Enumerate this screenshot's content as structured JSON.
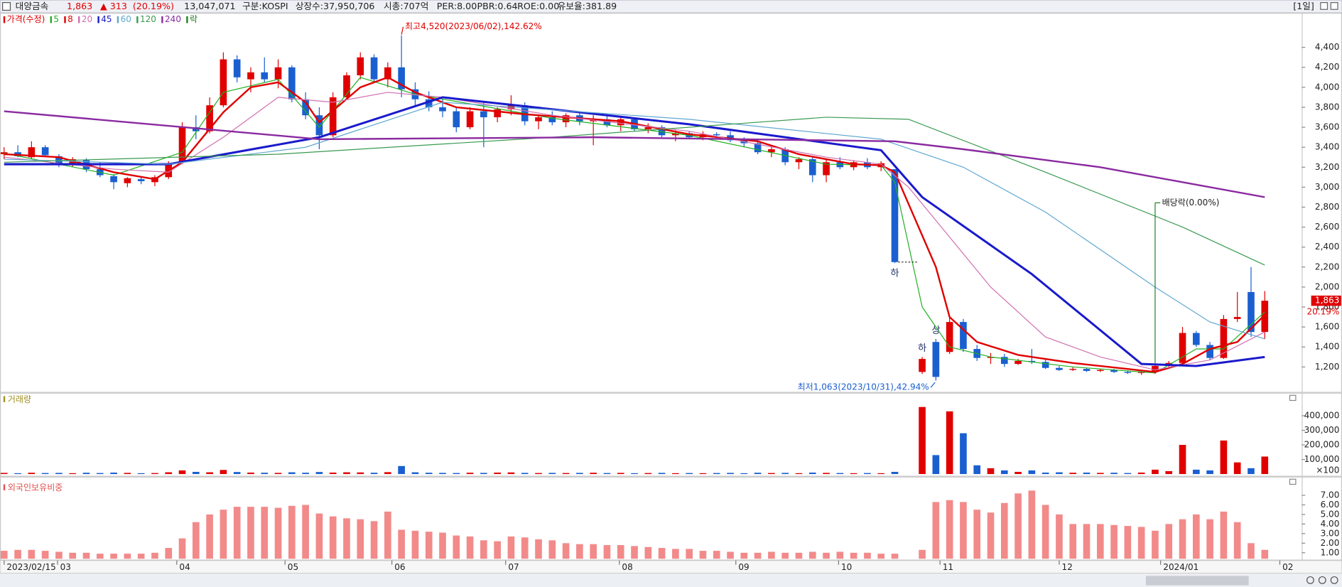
{
  "header": {
    "name": "대양금속",
    "price": "1,863",
    "change": "▲ 313",
    "change_pct": "(20.19%)",
    "volume": "13,047,071",
    "market": "구분:KOSPI",
    "shares": "상장수:37,950,706",
    "cap": "시총:707억",
    "per": "PER:8.00",
    "pbr": "PBR:0.64",
    "roe": "ROE:0.00",
    "reserve": "유보율:381.89",
    "period": "[1일]"
  },
  "chart_data": [
    {
      "type": "candlestick",
      "legend_title": "가격(수정)",
      "up_color": "#e00000",
      "down_color": "#1a5fd0",
      "open": [
        3330,
        3350,
        3300,
        3400,
        3310,
        3230,
        3270,
        3180,
        3110,
        3040,
        3080,
        3050,
        3100,
        3250,
        3600,
        3560,
        3820,
        4280,
        4080,
        4150,
        4080,
        4200,
        3880,
        3720,
        3520,
        3900,
        4120,
        4300,
        4080,
        4200,
        3980,
        3880,
        3800,
        3760,
        3600,
        3760,
        3700,
        3780,
        3820,
        3660,
        3700,
        3650,
        3720,
        3660,
        3680,
        3620,
        3680,
        3580,
        3600,
        3520,
        3540,
        3500,
        3530,
        3520,
        3470,
        3440,
        3350,
        3380,
        3250,
        3280,
        3120,
        3250,
        3200,
        3250,
        3200,
        3180,
        null,
        1150,
        1450,
        1350,
        1650,
        1380,
        1290,
        1300,
        1230,
        1260,
        1250,
        1190,
        1170,
        1180,
        1160,
        1170,
        1150,
        1140,
        1150,
        1210,
        1240,
        1540,
        1420,
        1290,
        1680,
        1950,
        1550
      ],
      "high": [
        3400,
        3420,
        3460,
        3420,
        3330,
        3300,
        3290,
        3250,
        3130,
        3100,
        3110,
        3120,
        3260,
        3650,
        3720,
        3900,
        4350,
        4320,
        4200,
        4300,
        4280,
        4220,
        3950,
        3800,
        3950,
        4150,
        4350,
        4330,
        4250,
        4520,
        4050,
        3960,
        3880,
        3800,
        3800,
        3850,
        3800,
        3920,
        3850,
        3720,
        3760,
        3740,
        3740,
        3720,
        3720,
        3700,
        3700,
        3640,
        3620,
        3570,
        3560,
        3560,
        3550,
        3560,
        3500,
        3470,
        3420,
        3400,
        3300,
        3300,
        3280,
        3300,
        3270,
        3290,
        3260,
        3180,
        null,
        1300,
        1480,
        1700,
        1680,
        1420,
        1340,
        1330,
        1280,
        1380,
        1270,
        1210,
        1200,
        1190,
        1180,
        1180,
        1160,
        1160,
        1220,
        1260,
        1600,
        1560,
        1450,
        1720,
        1950,
        2200,
        1960
      ],
      "low": [
        3280,
        3300,
        3280,
        3300,
        3200,
        3200,
        3150,
        3100,
        2980,
        3000,
        3030,
        3010,
        3080,
        3230,
        3480,
        3540,
        3800,
        4050,
        3950,
        4050,
        3990,
        3850,
        3680,
        3380,
        3500,
        3880,
        4080,
        4050,
        4000,
        3900,
        3820,
        3760,
        3700,
        3550,
        3580,
        3400,
        3650,
        3720,
        3620,
        3580,
        3620,
        3600,
        3620,
        3420,
        3600,
        3560,
        3560,
        3540,
        3500,
        3460,
        3480,
        3470,
        3480,
        3450,
        3400,
        3330,
        3300,
        3220,
        3180,
        3050,
        3050,
        3180,
        3170,
        3180,
        3160,
        2240,
        null,
        1130,
        1063,
        1330,
        1350,
        1260,
        1230,
        1200,
        1220,
        1230,
        1180,
        1160,
        1160,
        1150,
        1150,
        1140,
        1130,
        1120,
        1130,
        1190,
        1220,
        1400,
        1270,
        1280,
        1650,
        1500,
        1480
      ],
      "close": [
        3350,
        3310,
        3400,
        3320,
        3230,
        3280,
        3180,
        3120,
        3050,
        3090,
        3060,
        3100,
        3240,
        3600,
        3560,
        3820,
        4280,
        4100,
        4150,
        4080,
        4200,
        3880,
        3720,
        3520,
        3900,
        4120,
        4300,
        4080,
        4200,
        3980,
        3880,
        3800,
        3760,
        3600,
        3760,
        3700,
        3780,
        3820,
        3660,
        3700,
        3650,
        3720,
        3660,
        3680,
        3620,
        3680,
        3580,
        3600,
        3520,
        3540,
        3500,
        3530,
        3520,
        3470,
        3440,
        3350,
        3380,
        3250,
        3280,
        3120,
        3250,
        3200,
        3250,
        3200,
        3240,
        2250,
        null,
        1280,
        1100,
        1650,
        1380,
        1290,
        1300,
        1230,
        1260,
        1250,
        1190,
        1170,
        1180,
        1160,
        1170,
        1150,
        1140,
        1150,
        1210,
        1240,
        1540,
        1420,
        1290,
        1680,
        1700,
        1550,
        1863
      ],
      "series": [
        {
          "name": "5",
          "color": "#22b022",
          "width": 1,
          "x": [
            0,
            8,
            13,
            16,
            20,
            23,
            26,
            30,
            40,
            50,
            60,
            64,
            65,
            67,
            69,
            72,
            78,
            84,
            87,
            89,
            92
          ],
          "values": [
            3340,
            3120,
            3350,
            3950,
            4080,
            3600,
            4100,
            3930,
            3690,
            3520,
            3230,
            3220,
            3050,
            1800,
            1400,
            1300,
            1200,
            1140,
            1380,
            1380,
            1750
          ]
        },
        {
          "name": "8",
          "color": "#e00000",
          "width": 2,
          "x": [
            0,
            4,
            8,
            11,
            13,
            16,
            18,
            20,
            22,
            23,
            26,
            28,
            30,
            33,
            38,
            45,
            50,
            55,
            58,
            62,
            64,
            65,
            68,
            69,
            71,
            74,
            78,
            82,
            84,
            86,
            88,
            90,
            92
          ],
          "values": [
            3330,
            3300,
            3150,
            3080,
            3250,
            3750,
            4000,
            4050,
            3850,
            3650,
            4000,
            4100,
            3950,
            3800,
            3730,
            3660,
            3530,
            3460,
            3330,
            3230,
            3220,
            3150,
            2200,
            1700,
            1450,
            1320,
            1240,
            1180,
            1150,
            1230,
            1380,
            1450,
            1720
          ]
        },
        {
          "name": "20",
          "color": "#d070b0",
          "width": 1,
          "x": [
            0,
            8,
            12,
            16,
            20,
            24,
            28,
            32,
            40,
            50,
            60,
            64,
            66,
            69,
            72,
            76,
            80,
            84,
            88,
            92
          ],
          "values": [
            3300,
            3180,
            3150,
            3500,
            3900,
            3850,
            3950,
            3900,
            3720,
            3560,
            3300,
            3230,
            3000,
            2500,
            2000,
            1500,
            1300,
            1170,
            1270,
            1550
          ]
        },
        {
          "name": "45",
          "color": "#1a1acc",
          "width": 2.5,
          "x": [
            0,
            12,
            23,
            32,
            50,
            64,
            67,
            75,
            83,
            87,
            92
          ],
          "values": [
            3230,
            3230,
            3500,
            3900,
            3630,
            3370,
            2900,
            2130,
            1230,
            1210,
            1300
          ]
        },
        {
          "name": "60",
          "color": "#60a8d0",
          "width": 1,
          "x": [
            0,
            12,
            22,
            32,
            50,
            64,
            70,
            76,
            84,
            88,
            92
          ],
          "values": [
            3280,
            3230,
            3400,
            3850,
            3680,
            3480,
            3200,
            2750,
            2000,
            1650,
            1480
          ]
        },
        {
          "name": "120",
          "color": "#3a9a50",
          "width": 1,
          "x": [
            0,
            20,
            40,
            60,
            66,
            76,
            86,
            92
          ],
          "values": [
            3250,
            3330,
            3500,
            3700,
            3680,
            3150,
            2600,
            2220
          ]
        },
        {
          "name": "240",
          "color": "#8a2aa0",
          "width": 2,
          "x": [
            0,
            23,
            43,
            65,
            70,
            80,
            92
          ],
          "values": [
            3760,
            3480,
            3500,
            3460,
            3380,
            3200,
            2900
          ]
        }
      ],
      "event_legend": "락",
      "event": {
        "label": "배당락(0.00%)",
        "index": 84,
        "color": "#208020"
      },
      "annotations": [
        {
          "text": "최고4,520(2023/06/02),142.62%",
          "index": 29,
          "at": "high"
        },
        {
          "text": "최저1,063(2023/10/31),42.94%",
          "index": 68,
          "at": "low"
        }
      ],
      "marks": [
        {
          "text": "하",
          "index": 65,
          "at": "low"
        },
        {
          "text": "하",
          "index": 67,
          "at": "high"
        },
        {
          "text": "상",
          "index": 68,
          "at": "high"
        }
      ],
      "last_label": "1,863",
      "last_change": "20.19%",
      "xlim": [
        -0.3,
        94.7
      ],
      "ylim": [
        950,
        4720
      ],
      "yticks": [
        {
          "value": 1200,
          "label": "1,200"
        },
        {
          "value": 1400,
          "label": "1,400"
        },
        {
          "value": 1600,
          "label": "1,600"
        },
        {
          "value": 1800,
          "label": "1,800"
        },
        {
          "value": 2000,
          "label": "2,000"
        },
        {
          "value": 2200,
          "label": "2,200"
        },
        {
          "value": 2400,
          "label": "2,400"
        },
        {
          "value": 2600,
          "label": "2,600"
        },
        {
          "value": 2800,
          "label": "2,800"
        },
        {
          "value": 3000,
          "label": "3,000"
        },
        {
          "value": 3200,
          "label": "3,200"
        },
        {
          "value": 3400,
          "label": "3,400"
        },
        {
          "value": 3600,
          "label": "3,600"
        },
        {
          "value": 3800,
          "label": "3,800"
        },
        {
          "value": 4000,
          "label": "4,000"
        },
        {
          "value": 4200,
          "label": "4,200"
        },
        {
          "value": 4400,
          "label": "4,400"
        }
      ],
      "xticks": [
        {
          "value": 0,
          "label": "2023/02/15"
        },
        {
          "value": 3.9,
          "label": "03"
        },
        {
          "value": 12.6,
          "label": "04"
        },
        {
          "value": 20.5,
          "label": "05"
        },
        {
          "value": 28.3,
          "label": "06"
        },
        {
          "value": 36.6,
          "label": "07"
        },
        {
          "value": 44.9,
          "label": "08"
        },
        {
          "value": 53.4,
          "label": "09"
        },
        {
          "value": 60.9,
          "label": "10"
        },
        {
          "value": 68.3,
          "label": "11"
        },
        {
          "value": 77,
          "label": "12"
        },
        {
          "value": 84.4,
          "label": "2024/01"
        },
        {
          "value": 93.1,
          "label": "02"
        }
      ]
    },
    {
      "type": "bar",
      "title": "거래량",
      "title_color": "#a09020",
      "unit_label": "×100",
      "values": [
        8000,
        6000,
        9000,
        7000,
        8000,
        6000,
        9000,
        7000,
        10000,
        8000,
        6000,
        7000,
        12000,
        25000,
        15000,
        12000,
        28000,
        14000,
        10000,
        9000,
        8000,
        12000,
        9000,
        14000,
        10000,
        12000,
        11000,
        9000,
        13000,
        55000,
        12000,
        9000,
        8000,
        7000,
        9000,
        8000,
        10000,
        11000,
        8000,
        7000,
        8000,
        7000,
        8000,
        9000,
        7000,
        8000,
        6000,
        7000,
        8000,
        6000,
        7000,
        6000,
        7000,
        8000,
        6000,
        9000,
        7000,
        8000,
        6000,
        10000,
        8000,
        7000,
        6000,
        7000,
        6000,
        15000,
        null,
        460000,
        130000,
        430000,
        280000,
        60000,
        40000,
        25000,
        15000,
        25000,
        10000,
        12000,
        9000,
        10000,
        8000,
        9000,
        7000,
        10000,
        30000,
        20000,
        200000,
        30000,
        25000,
        230000,
        80000,
        40000,
        120000
      ],
      "ylim": [
        0,
        540000
      ],
      "yticks": [
        {
          "value": 100000,
          "label": "100,000"
        },
        {
          "value": 200000,
          "label": "200,000"
        },
        {
          "value": 300000,
          "label": "300,000"
        },
        {
          "value": 400000,
          "label": "400,000"
        }
      ]
    },
    {
      "type": "bar",
      "title": "외국인보유비중",
      "title_color": "#e05050",
      "color": "#f28a8a",
      "values": [
        1.2,
        1.3,
        1.3,
        1.2,
        1.1,
        1.0,
        1.0,
        0.9,
        0.9,
        0.9,
        0.9,
        1.0,
        1.5,
        2.5,
        4.2,
        5.0,
        5.5,
        5.8,
        5.8,
        5.8,
        5.7,
        5.9,
        6.0,
        5.1,
        4.8,
        4.6,
        4.5,
        4.3,
        5.3,
        3.4,
        3.3,
        3.2,
        3.1,
        2.8,
        2.7,
        2.3,
        2.2,
        2.7,
        2.6,
        2.4,
        2.3,
        2.0,
        1.9,
        1.9,
        1.8,
        1.8,
        1.7,
        1.6,
        1.5,
        1.4,
        1.4,
        1.2,
        1.2,
        1.1,
        1.0,
        1.0,
        1.1,
        1.0,
        1.0,
        1.1,
        1.0,
        1.1,
        1.0,
        1.0,
        0.9,
        0.9,
        null,
        1.3,
        6.3,
        6.5,
        6.3,
        5.5,
        5.2,
        6.2,
        7.2,
        7.5,
        6.0,
        5.0,
        4.0,
        4.0,
        4.0,
        3.9,
        3.8,
        3.7,
        3.3,
        4.0,
        4.5,
        5.0,
        4.5,
        5.3,
        4.2,
        2.0,
        1.3
      ],
      "ylim": [
        0.37,
        8.24
      ],
      "yticks": [
        {
          "value": 1,
          "label": "1.00"
        },
        {
          "value": 2,
          "label": "2.00"
        },
        {
          "value": 3,
          "label": "3.00"
        },
        {
          "value": 4,
          "label": "4.00"
        },
        {
          "value": 5,
          "label": "5.00"
        },
        {
          "value": 6,
          "label": "6.00"
        },
        {
          "value": 7,
          "label": "7.00"
        }
      ]
    }
  ]
}
